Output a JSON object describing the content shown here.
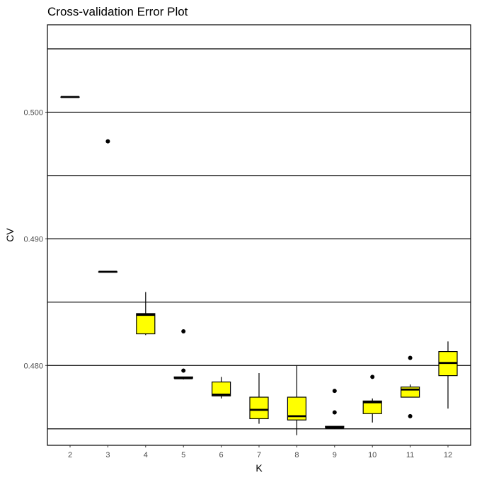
{
  "chart_data": {
    "type": "box",
    "title": "Cross-validation Error Plot",
    "xlabel": "K",
    "ylabel": "CV",
    "categories": [
      "2",
      "3",
      "4",
      "5",
      "6",
      "7",
      "8",
      "9",
      "10",
      "11",
      "12"
    ],
    "y_ticks": [
      0.48,
      0.49,
      0.5
    ],
    "y_tick_labels": [
      "0.480",
      "0.490",
      "0.500"
    ],
    "ylim": [
      0.4737,
      0.5069
    ],
    "grid": true,
    "box_color": "#ffff00",
    "boxes": [
      {
        "k": "2",
        "min": 0.5012,
        "q1": 0.5012,
        "median": 0.5012,
        "q3": 0.5012,
        "max": 0.5012,
        "outliers": []
      },
      {
        "k": "3",
        "min": 0.4874,
        "q1": 0.4874,
        "median": 0.4874,
        "q3": 0.4874,
        "max": 0.4874,
        "outliers": [
          0.4977
        ]
      },
      {
        "k": "4",
        "min": 0.4824,
        "q1": 0.4825,
        "median": 0.484,
        "q3": 0.4841,
        "max": 0.4858,
        "outliers": []
      },
      {
        "k": "5",
        "min": 0.4789,
        "q1": 0.479,
        "median": 0.479,
        "q3": 0.4791,
        "max": 0.4791,
        "outliers": [
          0.4827,
          0.4796
        ]
      },
      {
        "k": "6",
        "min": 0.4774,
        "q1": 0.4776,
        "median": 0.4777,
        "q3": 0.4787,
        "max": 0.4791,
        "outliers": []
      },
      {
        "k": "7",
        "min": 0.4754,
        "q1": 0.4758,
        "median": 0.4765,
        "q3": 0.4775,
        "max": 0.4794,
        "outliers": []
      },
      {
        "k": "8",
        "min": 0.4745,
        "q1": 0.4757,
        "median": 0.476,
        "q3": 0.4775,
        "max": 0.48,
        "outliers": []
      },
      {
        "k": "9",
        "min": 0.475,
        "q1": 0.4751,
        "median": 0.4751,
        "q3": 0.4752,
        "max": 0.4752,
        "outliers": [
          0.478,
          0.4763
        ]
      },
      {
        "k": "10",
        "min": 0.4755,
        "q1": 0.4762,
        "median": 0.4771,
        "q3": 0.4772,
        "max": 0.4774,
        "outliers": [
          0.4791
        ]
      },
      {
        "k": "11",
        "min": 0.4775,
        "q1": 0.4775,
        "median": 0.4781,
        "q3": 0.4783,
        "max": 0.4785,
        "outliers": [
          0.4806,
          0.476
        ]
      },
      {
        "k": "12",
        "min": 0.4766,
        "q1": 0.4792,
        "median": 0.4802,
        "q3": 0.4811,
        "max": 0.4819,
        "outliers": []
      }
    ]
  }
}
